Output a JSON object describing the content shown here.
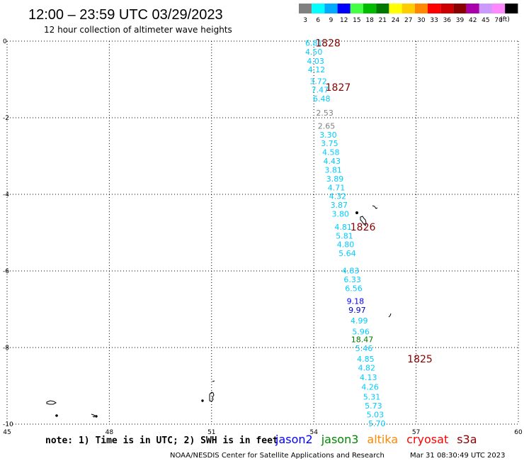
{
  "header": {
    "title": "12:00 – 23:59 UTC 03/29/2023",
    "subtitle": "12 hour collection of altimeter wave heights"
  },
  "color_scale": {
    "unit": "(ft)",
    "bins": [
      {
        "label": "3",
        "color": "#808080"
      },
      {
        "label": "6",
        "color": "#00ffff"
      },
      {
        "label": "9",
        "color": "#00aaff"
      },
      {
        "label": "12",
        "color": "#0000ff"
      },
      {
        "label": "15",
        "color": "#44ff44"
      },
      {
        "label": "18",
        "color": "#00bb00"
      },
      {
        "label": "21",
        "color": "#007700"
      },
      {
        "label": "24",
        "color": "#ffff00"
      },
      {
        "label": "27",
        "color": "#ffcc00"
      },
      {
        "label": "30",
        "color": "#ff8800"
      },
      {
        "label": "33",
        "color": "#ff0000"
      },
      {
        "label": "36",
        "color": "#cc0000"
      },
      {
        "label": "39",
        "color": "#880000"
      },
      {
        "label": "42",
        "color": "#aa00aa"
      },
      {
        "label": "45",
        "color": "#cc99ff"
      },
      {
        "label": "70",
        "color": "#ff88ff"
      },
      {
        "label": "",
        "color": "#000000"
      }
    ]
  },
  "axes": {
    "x_ticks": [
      "45",
      "48",
      "51",
      "54",
      "57",
      "60"
    ],
    "y_ticks": [
      "0",
      "-2",
      "-4",
      "-6",
      "-8",
      "-10"
    ]
  },
  "chart_data": {
    "type": "scatter",
    "x_range": [
      45,
      60
    ],
    "y_range": [
      -10,
      0
    ],
    "x_label": "",
    "y_label": "",
    "grid": true,
    "points": [
      {
        "v": "6.81",
        "lon": 54.0,
        "lat": -0.05,
        "c": "#00ccff"
      },
      {
        "v": "4.50",
        "lon": 54.0,
        "lat": -0.28,
        "c": "#00ccff"
      },
      {
        "v": "4.03",
        "lon": 54.05,
        "lat": -0.52,
        "c": "#00ccff"
      },
      {
        "v": "4.12",
        "lon": 54.08,
        "lat": -0.74,
        "c": "#00ccff"
      },
      {
        "v": "3.72",
        "lon": 54.13,
        "lat": -1.05,
        "c": "#00ccff"
      },
      {
        "v": "7.47",
        "lon": 54.18,
        "lat": -1.27,
        "c": "#00ccff"
      },
      {
        "v": "6.48",
        "lon": 54.23,
        "lat": -1.5,
        "c": "#00ccff"
      },
      {
        "v": "2.53",
        "lon": 54.32,
        "lat": -1.87,
        "c": "#808080"
      },
      {
        "v": "2.65",
        "lon": 54.37,
        "lat": -2.21,
        "c": "#808080"
      },
      {
        "v": "3.30",
        "lon": 54.42,
        "lat": -2.44,
        "c": "#00ccff"
      },
      {
        "v": "3.75",
        "lon": 54.46,
        "lat": -2.67,
        "c": "#00ccff"
      },
      {
        "v": "4.58",
        "lon": 54.5,
        "lat": -2.9,
        "c": "#00ccff"
      },
      {
        "v": "4.43",
        "lon": 54.53,
        "lat": -3.13,
        "c": "#00ccff"
      },
      {
        "v": "3.81",
        "lon": 54.57,
        "lat": -3.36,
        "c": "#00ccff"
      },
      {
        "v": "3.89",
        "lon": 54.62,
        "lat": -3.59,
        "c": "#00ccff"
      },
      {
        "v": "4.71",
        "lon": 54.66,
        "lat": -3.82,
        "c": "#00ccff"
      },
      {
        "v": "4.32",
        "lon": 54.7,
        "lat": -4.05,
        "c": "#00ccff"
      },
      {
        "v": "3.87",
        "lon": 54.74,
        "lat": -4.28,
        "c": "#00ccff"
      },
      {
        "v": "3.80",
        "lon": 54.78,
        "lat": -4.51,
        "c": "#00ccff"
      },
      {
        "v": "4.81",
        "lon": 54.86,
        "lat": -4.85,
        "c": "#00ccff"
      },
      {
        "v": "5.81",
        "lon": 54.9,
        "lat": -5.08,
        "c": "#00ccff"
      },
      {
        "v": "4.80",
        "lon": 54.93,
        "lat": -5.31,
        "c": "#00ccff"
      },
      {
        "v": "5.64",
        "lon": 54.98,
        "lat": -5.54,
        "c": "#00ccff"
      },
      {
        "v": "4.83",
        "lon": 55.08,
        "lat": -5.99,
        "c": "#00ccff"
      },
      {
        "v": "6.33",
        "lon": 55.13,
        "lat": -6.22,
        "c": "#00ccff"
      },
      {
        "v": "6.56",
        "lon": 55.17,
        "lat": -6.45,
        "c": "#00ccff"
      },
      {
        "v": "9.18",
        "lon": 55.22,
        "lat": -6.79,
        "c": "#0000ff"
      },
      {
        "v": "9.97",
        "lon": 55.27,
        "lat": -7.02,
        "c": "#0000cc"
      },
      {
        "v": "4.99",
        "lon": 55.33,
        "lat": -7.3,
        "c": "#00ccff"
      },
      {
        "v": "5.96",
        "lon": 55.38,
        "lat": -7.58,
        "c": "#00ccff"
      },
      {
        "v": "18.47",
        "lon": 55.42,
        "lat": -7.79,
        "c": "#007700"
      },
      {
        "v": "5.46",
        "lon": 55.47,
        "lat": -8.02,
        "c": "#00ccff"
      },
      {
        "v": "4.85",
        "lon": 55.52,
        "lat": -8.3,
        "c": "#00ccff"
      },
      {
        "v": "4.82",
        "lon": 55.55,
        "lat": -8.53,
        "c": "#00ccff"
      },
      {
        "v": "4.13",
        "lon": 55.6,
        "lat": -8.78,
        "c": "#00ccff"
      },
      {
        "v": "4.26",
        "lon": 55.65,
        "lat": -9.03,
        "c": "#00ccff"
      },
      {
        "v": "5.31",
        "lon": 55.7,
        "lat": -9.29,
        "c": "#00ccff"
      },
      {
        "v": "5.73",
        "lon": 55.75,
        "lat": -9.52,
        "c": "#00ccff"
      },
      {
        "v": "5.03",
        "lon": 55.8,
        "lat": -9.75,
        "c": "#00ccff"
      },
      {
        "v": "5.70",
        "lon": 55.85,
        "lat": -9.98,
        "c": "#00ccff"
      }
    ],
    "time_labels": [
      {
        "t": "1828",
        "lon": 54.0,
        "lat": -0.05
      },
      {
        "t": "1827",
        "lon": 54.3,
        "lat": -1.2
      },
      {
        "t": "1826",
        "lon": 55.03,
        "lat": -4.85
      },
      {
        "t": "1825",
        "lon": 56.7,
        "lat": -8.3
      }
    ]
  },
  "footer": {
    "note": "note:  1) Time is in UTC; 2) SWH is in feet",
    "satellites": [
      {
        "name": "jason2",
        "color": "#0000ff"
      },
      {
        "name": "jason3",
        "color": "#008800"
      },
      {
        "name": "altika",
        "color": "#ff8800"
      },
      {
        "name": "cryosat",
        "color": "#ff0000"
      },
      {
        "name": "s3a",
        "color": "#880000"
      }
    ],
    "credit": "NOAA/NESDIS Center for Satellite Applications and Research",
    "timestamp": "Mar 31 08:30:49 UTC 2023"
  }
}
